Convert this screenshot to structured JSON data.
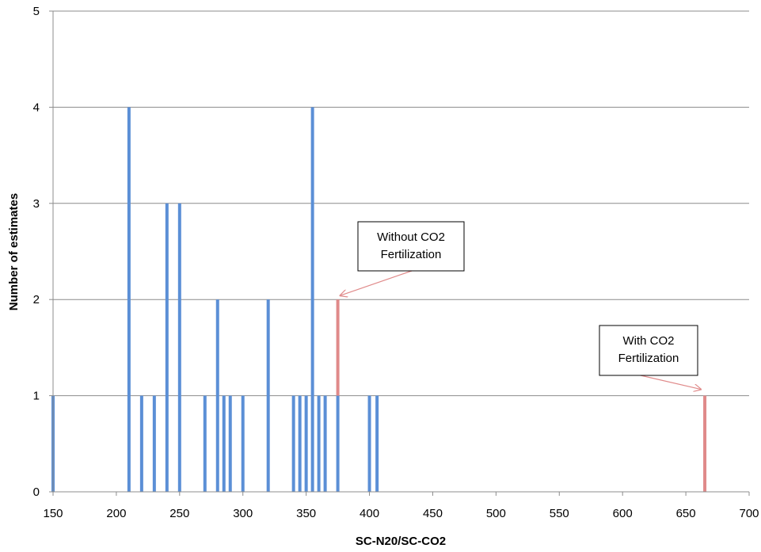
{
  "chart_data": {
    "type": "bar",
    "title": "",
    "xlabel": "SC-N20/SC-CO2",
    "ylabel": "Number of estimates",
    "xlim": [
      150,
      700
    ],
    "ylim": [
      0,
      5
    ],
    "xticks": [
      "150",
      "200",
      "250",
      "300",
      "350",
      "400",
      "450",
      "500",
      "550",
      "600",
      "650",
      "700"
    ],
    "yticks": [
      "0",
      "1",
      "2",
      "3",
      "4",
      "5"
    ],
    "grid": "horizontal",
    "colors": {
      "default": "#5b8fd6",
      "highlight": "#e08a8a",
      "grid": "#8c8c8c",
      "axis": "#8c8c8c"
    },
    "series": [
      {
        "color": "#5b8fd6",
        "points": [
          {
            "x": 150,
            "y": 1
          },
          {
            "x": 210,
            "y": 4
          },
          {
            "x": 220,
            "y": 1
          },
          {
            "x": 230,
            "y": 1
          },
          {
            "x": 240,
            "y": 3
          },
          {
            "x": 250,
            "y": 3
          },
          {
            "x": 270,
            "y": 1
          },
          {
            "x": 280,
            "y": 2
          },
          {
            "x": 285,
            "y": 1
          },
          {
            "x": 290,
            "y": 1
          },
          {
            "x": 300,
            "y": 1
          },
          {
            "x": 320,
            "y": 2
          },
          {
            "x": 340,
            "y": 1
          },
          {
            "x": 345,
            "y": 1
          },
          {
            "x": 350,
            "y": 1
          },
          {
            "x": 355,
            "y": 4
          },
          {
            "x": 360,
            "y": 1
          },
          {
            "x": 365,
            "y": 1
          },
          {
            "x": 375,
            "y": 1
          },
          {
            "x": 400,
            "y": 1
          },
          {
            "x": 406,
            "y": 1
          }
        ]
      },
      {
        "color": "#e08a8a",
        "points": [
          {
            "x": 375,
            "y": 1,
            "base": 1
          },
          {
            "x": 665,
            "y": 1
          }
        ]
      }
    ],
    "annotations": [
      {
        "lines": [
          "Without CO2",
          "Fertilization"
        ],
        "target_x": 375,
        "target_y": 2
      },
      {
        "lines": [
          "With CO2",
          "Fertilization"
        ],
        "target_x": 665,
        "target_y": 1
      }
    ]
  }
}
